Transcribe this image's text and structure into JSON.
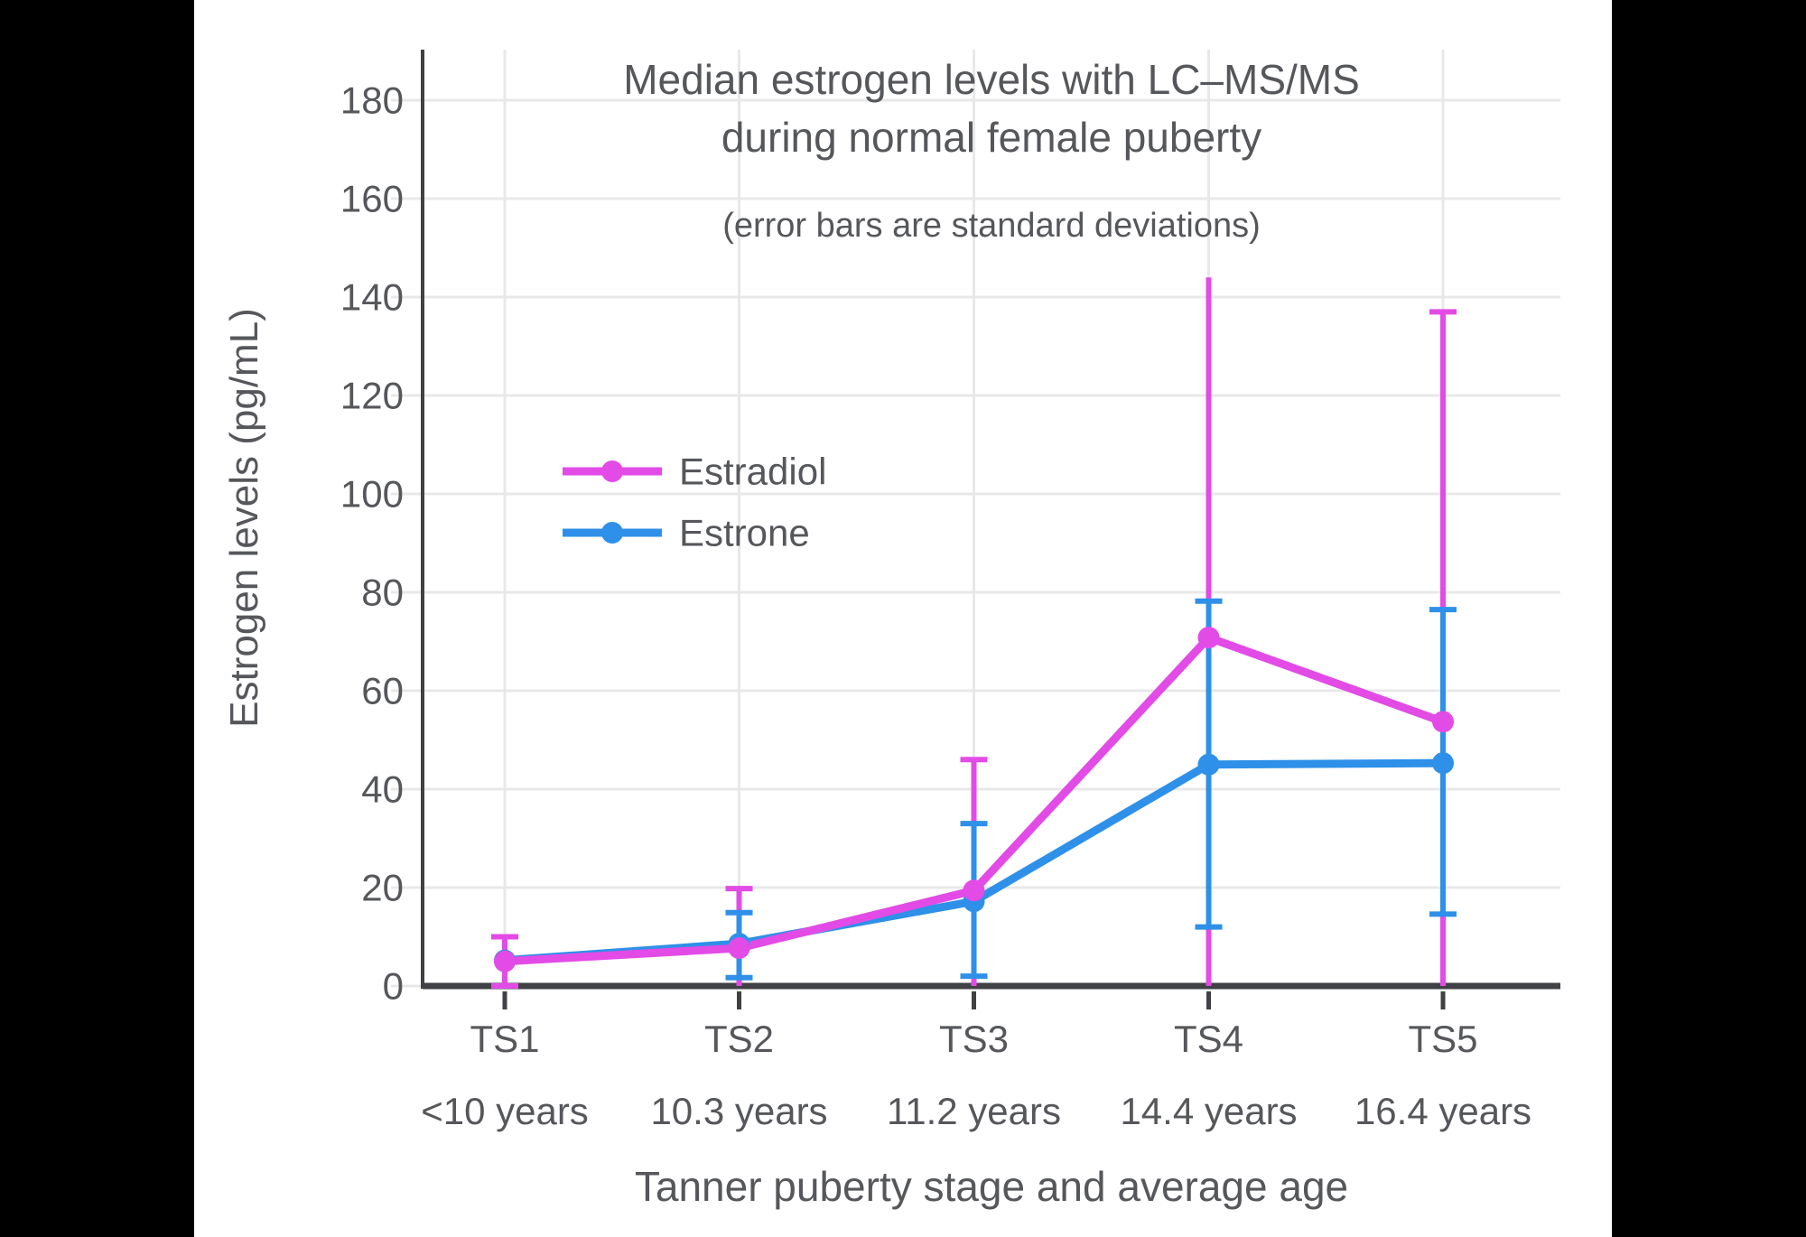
{
  "window": {
    "background": "#000000",
    "canvas_background": "#FFFFFF"
  },
  "chart_data": {
    "type": "line",
    "title_lines": [
      "Median estrogen levels with LC–MS/MS",
      "during normal female puberty"
    ],
    "subtitle": "(error bars are standard deviations)",
    "xlabel": "Tanner puberty stage and average age",
    "ylabel": "Estrogen levels (pg/mL)",
    "ylim": [
      0,
      190
    ],
    "yticks": [
      0,
      20,
      40,
      60,
      80,
      100,
      120,
      140,
      160,
      180
    ],
    "categories": [
      "TS1",
      "TS2",
      "TS3",
      "TS4",
      "TS5"
    ],
    "category_ages": [
      "<10 years",
      "10.3 years",
      "11.2 years",
      "14.4 years",
      "16.4 years"
    ],
    "grid": true,
    "legend": {
      "position": "inside-upper-left",
      "entries": [
        "Estradiol",
        "Estrone"
      ]
    },
    "series": [
      {
        "name": "Estradiol",
        "color": "#E24BE6",
        "values": [
          5.0,
          7.7,
          19.4,
          70.8,
          53.7
        ],
        "error_top": [
          10.0,
          19.8,
          46.0,
          144.0,
          137.0
        ],
        "error_bottom": [
          0.0,
          0.0,
          0.0,
          0.0,
          0.0
        ],
        "error_top_cap": [
          true,
          true,
          true,
          false,
          true
        ],
        "error_bottom_cap": [
          true,
          false,
          false,
          false,
          false
        ]
      },
      {
        "name": "Estrone",
        "color": "#2E90E8",
        "values": [
          5.2,
          8.6,
          17.2,
          45.0,
          45.3
        ],
        "error_top": [
          null,
          14.9,
          33.0,
          78.2,
          76.5
        ],
        "error_bottom": [
          null,
          1.7,
          2.0,
          12.0,
          14.6
        ],
        "error_top_cap": [
          false,
          true,
          true,
          true,
          true
        ],
        "error_bottom_cap": [
          false,
          true,
          true,
          true,
          true
        ]
      }
    ]
  },
  "styles": {
    "text_color": "#55575B",
    "spine_color": "#3F4145",
    "grid_color": "#E8E8E8"
  }
}
